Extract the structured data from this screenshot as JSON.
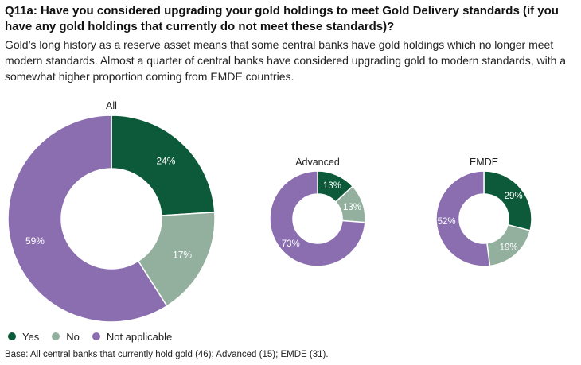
{
  "title": "Q11a: Have you considered upgrading your gold holdings to meet Gold Delivery standards (if you have any gold holdings that currently do not meet these standards)?",
  "subtitle": "Gold’s long history as a reserve asset means that some central banks have gold holdings which no longer meet modern standards. Almost a quarter of central banks have considered upgrading gold to modern standards, with a somewhat higher proportion coming from EMDE countries.",
  "colors": {
    "yes": "#0d5a3a",
    "no": "#93b09f",
    "na": "#8a6eb0"
  },
  "chart_data": [
    {
      "type": "pie",
      "title": "All",
      "categories": [
        "Yes",
        "No",
        "Not applicable"
      ],
      "values": [
        24,
        17,
        59
      ],
      "labels": [
        "24%",
        "17%",
        "59%"
      ]
    },
    {
      "type": "pie",
      "title": "Advanced",
      "categories": [
        "Yes",
        "No",
        "Not applicable"
      ],
      "values": [
        13,
        13,
        73
      ],
      "labels": [
        "13%",
        "13%",
        "73%"
      ]
    },
    {
      "type": "pie",
      "title": "EMDE",
      "categories": [
        "Yes",
        "No",
        "Not applicable"
      ],
      "values": [
        29,
        19,
        52
      ],
      "labels": [
        "29%",
        "19%",
        "52%"
      ]
    }
  ],
  "legend": [
    {
      "label": "Yes",
      "color": "#0d5a3a"
    },
    {
      "label": "No",
      "color": "#93b09f"
    },
    {
      "label": "Not applicable",
      "color": "#8a6eb0"
    }
  ],
  "base": "Base: All central banks that currently hold gold (46); Advanced (15); EMDE (31)."
}
